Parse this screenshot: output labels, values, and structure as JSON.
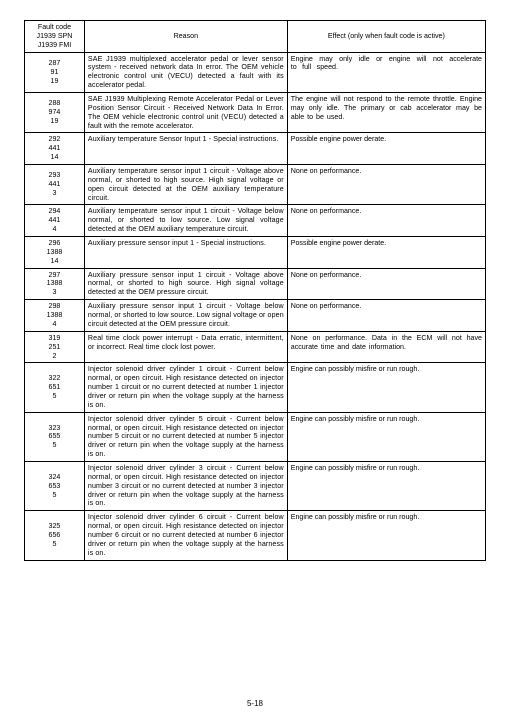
{
  "table": {
    "header": {
      "fault_code_line1": "Fault code",
      "fault_code_line2": "J1939 SPN",
      "fault_code_line3": "J1939 FMI",
      "reason": "Reason",
      "effect": "Effect (only when fault code is active)"
    },
    "rows": [
      {
        "fc": [
          "287",
          "91",
          "19"
        ],
        "reason": "SAE J1939 multiplexed accelerator pedal or lever sensor system - received network data In error. The OEM vehicle electronic control unit (VECU) detected a fault with its accelerator pedal.",
        "effect": "Engine may only idle or engine will not accelerate to full speed.",
        "effect_class": "stretch2"
      },
      {
        "fc": [
          "288",
          "974",
          "19"
        ],
        "reason": "SAE J1939 Multiplexing Remote Accelerator Pedal or Lever Position Sensor Circuit - Received Network Data In Error. The OEM vehicle electronic control unit (VECU) detected a fault with the remote accelerator.",
        "effect": "The engine will not respond to the remote throttle. Engine may only idle.  The primary or cab accelerator may be able to be used.",
        "effect_class": "stretch3"
      },
      {
        "fc": [
          "292",
          "441",
          "14"
        ],
        "reason": "Auxiliary temperature Sensor Input  1 - Special instructions.",
        "effect": "Possible engine power derate.",
        "effect_class": ""
      },
      {
        "fc": [
          "293",
          "441",
          "3"
        ],
        "reason": "Auxiliary temperature sensor input  1 circuit - Voltage above normal, or shorted to high source. High signal voltage or open circuit detected at the OEM auxiliary temperature circuit.",
        "effect": "None on performance.",
        "effect_class": ""
      },
      {
        "fc": [
          "294",
          "441",
          "4"
        ],
        "reason": "Auxiliary temperature sensor input 1 circuit - Voltage below normal, or shorted to low source. Low signal voltage detected at the OEM auxiliary temperature circuit.",
        "effect": "None on performance.",
        "effect_class": ""
      },
      {
        "fc": [
          "296",
          "1388",
          "14"
        ],
        "reason": "Auxiliary pressure sensor input 1 - Special instructions.",
        "effect": "Possible engine power derate.",
        "effect_class": ""
      },
      {
        "fc": [
          "297",
          "1388",
          "3"
        ],
        "reason": "Auxiliary pressure sensor input 1 circuit - Voltage above normal, or shorted to high source. High signal voltage detected at the OEM pressure circuit.",
        "effect": "None on performance.",
        "effect_class": ""
      },
      {
        "fc": [
          "298",
          "1388",
          "4"
        ],
        "reason": "Auxiliary pressure sensor input 1 circuit - Voltage below normal, or shorted to low source. Low signal voltage or open circuit detected at the OEM pressure circuit.",
        "effect": "None on performance.",
        "effect_class": ""
      },
      {
        "fc": [
          "319",
          "251",
          "2"
        ],
        "reason": "Real time clock power interrupt - Data erratic, intermittent, or incorrect. Real time clock lost power.",
        "effect": "None on performance. Data in the ECM will not have accurate time and date information.",
        "effect_class": "stretch3"
      },
      {
        "fc": [
          "322",
          "651",
          "5"
        ],
        "reason": "Injector solenoid  driver cylinder 1 circuit - Current below normal, or open circuit. High resistance detected on injector number 1 circuit or no current detected at number 1 injector driver or return pin when the voltage supply at the harness is on.",
        "effect": "Engine can possibly misfire or run rough.",
        "effect_class": ""
      },
      {
        "fc": [
          "323",
          "655",
          "5"
        ],
        "reason": "Injector solenoid  driver cylinder 5 circuit - Current below normal, or open circuit. High resistance detected on injector number 5 circuit or no current detected at number 5 injector driver or return pin when the voltage supply at the harness is on.",
        "effect": "Engine can possibly misfire or run rough.",
        "effect_class": ""
      },
      {
        "fc": [
          "324",
          "653",
          "5"
        ],
        "reason": "Injector solenoid  driver cylinder 3 circuit - Current below normal, or open circuit. High resistance detected on injector number 3 circuit or no current detected at number 3 injector driver or return pin when the voltage supply at the harness is on.",
        "effect": "Engine can possibly misfire or run rough.",
        "effect_class": ""
      },
      {
        "fc": [
          "325",
          "656",
          "5"
        ],
        "reason": "Injector solenoid  driver cylinder 6 circuit - Current below normal, or open circuit. High resistance detected on injector number 6 circuit or no current detected at number 6 injector driver or return pin when the voltage supply at the harness is on.",
        "effect": "Engine can possibly misfire or run rough.",
        "effect_class": ""
      }
    ]
  },
  "page_number": "5-18"
}
